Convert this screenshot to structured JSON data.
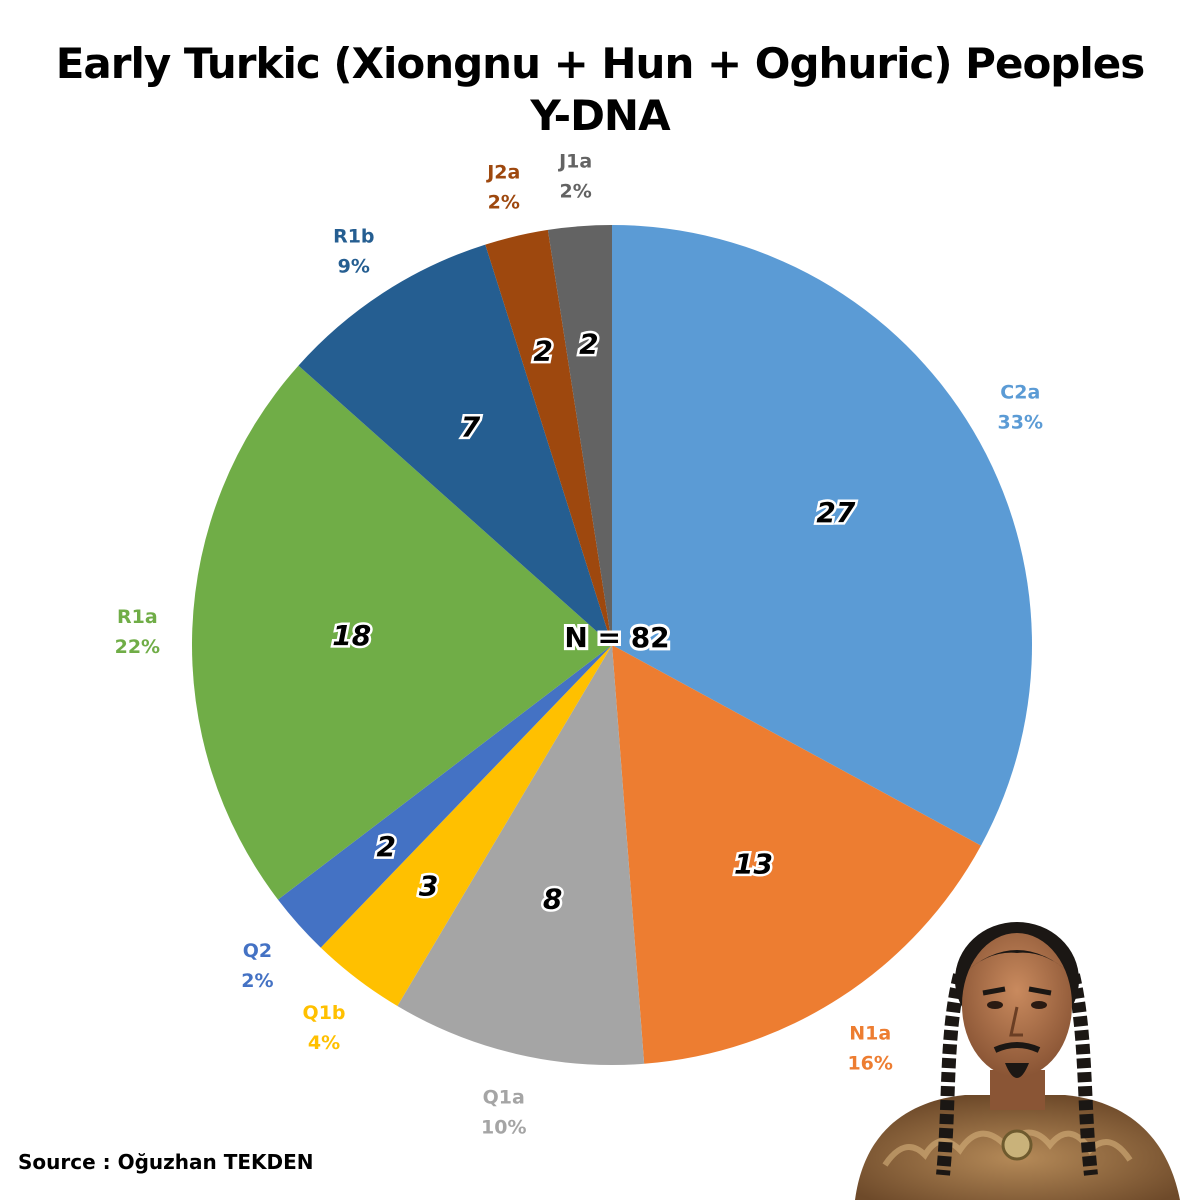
{
  "title_line1": "Early Turkic (Xiongnu + Hun + Oghuric) Peoples",
  "title_line2": "Y-DNA",
  "source": "Source : Oğuzhan TEKDEN",
  "center_label": "N = 82",
  "portrait_icon": "portrait-illustration",
  "chart_data": {
    "type": "pie",
    "title": "Early Turkic (Xiongnu + Hun + Oghuric) Peoples Y-DNA",
    "total": 82,
    "start": "12 o'clock, clockwise",
    "slices": [
      {
        "label": "C2a",
        "value": 27,
        "percent": "33%",
        "color": "#5b9bd5"
      },
      {
        "label": "N1a",
        "value": 13,
        "percent": "16%",
        "color": "#ed7d31"
      },
      {
        "label": "Q1a",
        "value": 8,
        "percent": "10%",
        "color": "#a5a5a5"
      },
      {
        "label": "Q1b",
        "value": 3,
        "percent": "4%",
        "color": "#ffc000"
      },
      {
        "label": "Q2",
        "value": 2,
        "percent": "2%",
        "color": "#4472c4"
      },
      {
        "label": "R1a",
        "value": 18,
        "percent": "22%",
        "color": "#70ad47"
      },
      {
        "label": "R1b",
        "value": 7,
        "percent": "9%",
        "color": "#255e91"
      },
      {
        "label": "J2a",
        "value": 2,
        "percent": "2%",
        "color": "#9e480e"
      },
      {
        "label": "J1a",
        "value": 2,
        "percent": "2%",
        "color": "#636363"
      }
    ]
  }
}
